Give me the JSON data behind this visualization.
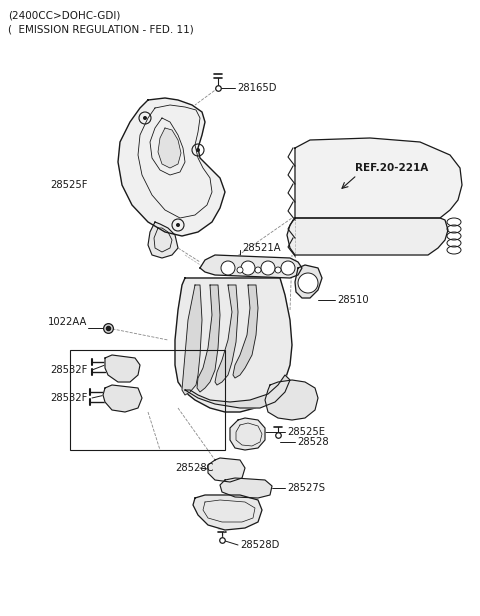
{
  "title_line1": "(2400CC>DOHC-GDI)",
  "title_line2": "(  EMISSION REGULATION - FED. 11)",
  "bg_color": "#ffffff",
  "line_color": "#1a1a1a",
  "ref_label": "REF.20-221A",
  "fig_w": 4.8,
  "fig_h": 6.16,
  "dpi": 100
}
